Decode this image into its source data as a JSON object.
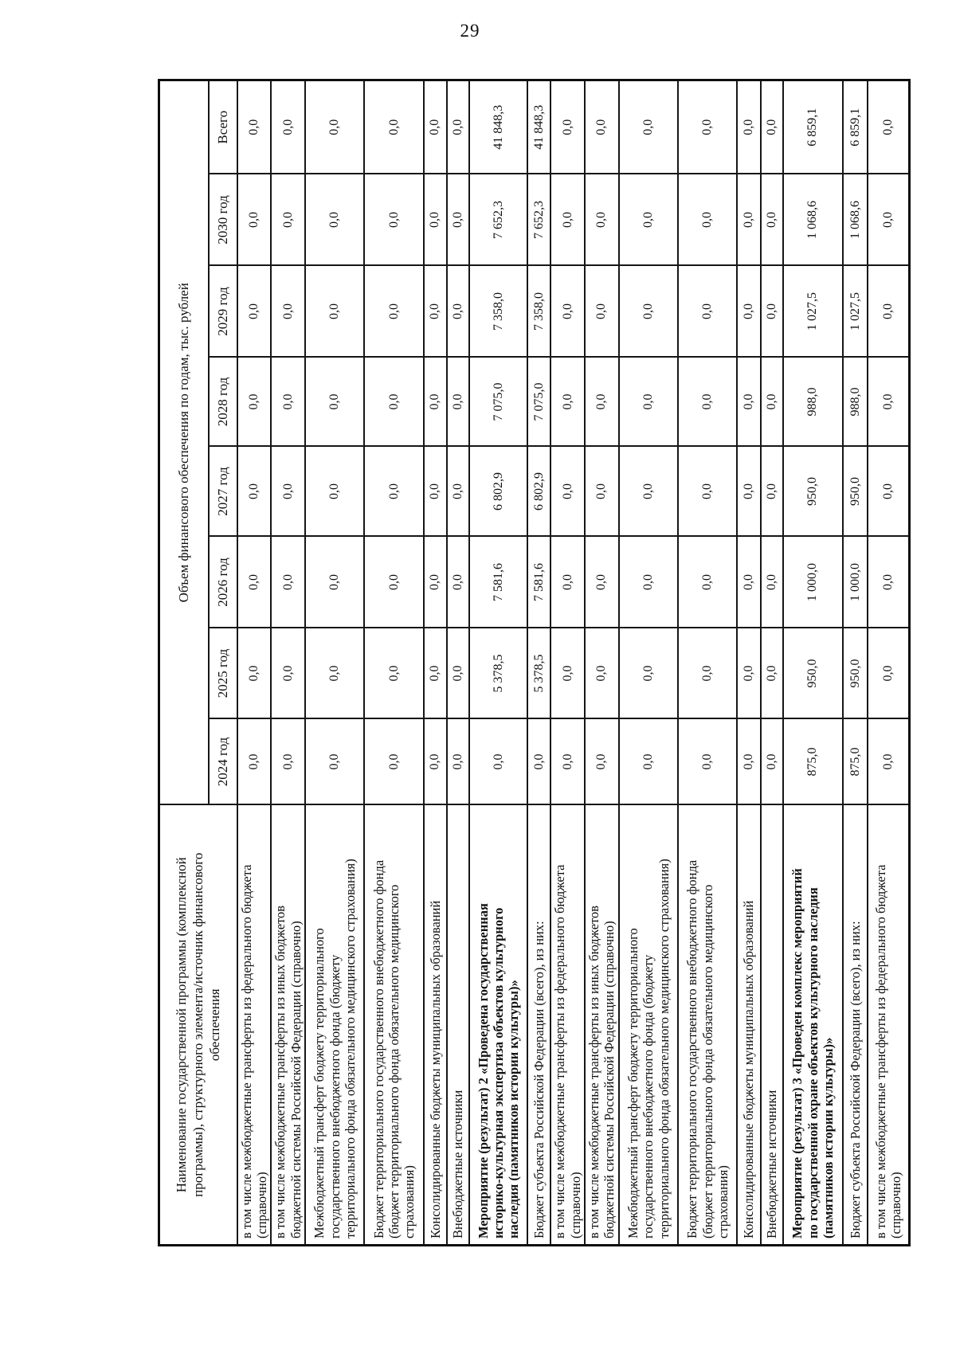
{
  "page": {
    "number": "29"
  },
  "table": {
    "header": {
      "name_column": "Наименование государственной программы (комплексной\nпрограммы), структурного элемента/источник финансового\nобеспечения",
      "group_title": "Объем финансового обеспечения по годам, тыс. рублей",
      "year_columns": [
        "2024 год",
        "2025 год",
        "2026 год",
        "2027 год",
        "2028 год",
        "2029 год",
        "2030 год",
        "Всего"
      ]
    },
    "rows": [
      {
        "label": "в том числе межбюджетные трансферты из федерального бюджета\n(справочно)",
        "bold": false,
        "values": [
          "0,0",
          "0,0",
          "0,0",
          "0,0",
          "0,0",
          "0,0",
          "0,0",
          "0,0"
        ]
      },
      {
        "label": "в том числе межбюджетные трансферты из иных бюджетов\nбюджетной системы Российской Федерации (справочно)",
        "bold": false,
        "values": [
          "0,0",
          "0,0",
          "0,0",
          "0,0",
          "0,0",
          "0,0",
          "0,0",
          "0,0"
        ]
      },
      {
        "label": "Межбюджетный трансферт бюджету территориального\nгосударственного внебюджетного фонда (бюджету\nтерриториального фонда обязательного медицинского страхования)",
        "bold": false,
        "values": [
          "0,0",
          "0,0",
          "0,0",
          "0,0",
          "0,0",
          "0,0",
          "0,0",
          "0,0"
        ]
      },
      {
        "label": "Бюджет территориального государственного внебюджетного фонда\n(бюджет территориального фонда обязательного медицинского\nстрахования)",
        "bold": false,
        "values": [
          "0,0",
          "0,0",
          "0,0",
          "0,0",
          "0,0",
          "0,0",
          "0,0",
          "0,0"
        ]
      },
      {
        "label": "Консолидированные бюджеты муниципальных образований",
        "bold": false,
        "values": [
          "0,0",
          "0,0",
          "0,0",
          "0,0",
          "0,0",
          "0,0",
          "0,0",
          "0,0"
        ]
      },
      {
        "label": "Внебюджетные источники",
        "bold": false,
        "values": [
          "0,0",
          "0,0",
          "0,0",
          "0,0",
          "0,0",
          "0,0",
          "0,0",
          "0,0"
        ]
      },
      {
        "label": "Мероприятие (результат) 2 «Проведена государственная\nисторико-культурная экспертиза объектов культурного\nнаследия (памятников истории культуры)»",
        "bold": true,
        "values": [
          "0,0",
          "5 378,5",
          "7 581,6",
          "6 802,9",
          "7 075,0",
          "7 358,0",
          "7 652,3",
          "41 848,3"
        ]
      },
      {
        "label": "Бюджет субъекта Российской Федерации (всего), из них:",
        "bold": false,
        "values": [
          "0,0",
          "5 378,5",
          "7 581,6",
          "6 802,9",
          "7 075,0",
          "7 358,0",
          "7 652,3",
          "41 848,3"
        ]
      },
      {
        "label": "в том числе межбюджетные трансферты из федерального бюджета\n(справочно)",
        "bold": false,
        "values": [
          "0,0",
          "0,0",
          "0,0",
          "0,0",
          "0,0",
          "0,0",
          "0,0",
          "0,0"
        ]
      },
      {
        "label": "в том числе межбюджетные трансферты из иных бюджетов\nбюджетной системы Российской Федерации (справочно)",
        "bold": false,
        "values": [
          "0,0",
          "0,0",
          "0,0",
          "0,0",
          "0,0",
          "0,0",
          "0,0",
          "0,0"
        ]
      },
      {
        "label": "Межбюджетный трансферт бюджету территориального\nгосударственного внебюджетного фонда (бюджету\nтерриториального фонда обязательного медицинского страхования)",
        "bold": false,
        "values": [
          "0,0",
          "0,0",
          "0,0",
          "0,0",
          "0,0",
          "0,0",
          "0,0",
          "0,0"
        ]
      },
      {
        "label": "Бюджет территориального государственного внебюджетного фонда\n(бюджет территориального фонда обязательного медицинского\nстрахования)",
        "bold": false,
        "values": [
          "0,0",
          "0,0",
          "0,0",
          "0,0",
          "0,0",
          "0,0",
          "0,0",
          "0,0"
        ]
      },
      {
        "label": "Консолидированные бюджеты муниципальных образований",
        "bold": false,
        "values": [
          "0,0",
          "0,0",
          "0,0",
          "0,0",
          "0,0",
          "0,0",
          "0,0",
          "0,0"
        ]
      },
      {
        "label": "Внебюджетные источники",
        "bold": false,
        "values": [
          "0,0",
          "0,0",
          "0,0",
          "0,0",
          "0,0",
          "0,0",
          "0,0",
          "0,0"
        ]
      },
      {
        "label": "Мероприятие (результат) 3 «Проведен комплекс мероприятий\nпо государственной охране объектов культурного наследия\n(памятников истории культуры)»",
        "bold": true,
        "values": [
          "875,0",
          "950,0",
          "1 000,0",
          "950,0",
          "988,0",
          "1 027,5",
          "1 068,6",
          "6 859,1"
        ]
      },
      {
        "label": "Бюджет субъекта Российской Федерации (всего), из них:",
        "bold": false,
        "values": [
          "875,0",
          "950,0",
          "1 000,0",
          "950,0",
          "988,0",
          "1 027,5",
          "1 068,6",
          "6 859,1"
        ]
      },
      {
        "label": "в том числе межбюджетные трансферты из федерального бюджета\n(справочно)",
        "bold": false,
        "values": [
          "0,0",
          "0,0",
          "0,0",
          "0,0",
          "0,0",
          "0,0",
          "0,0",
          "0,0"
        ]
      }
    ]
  }
}
